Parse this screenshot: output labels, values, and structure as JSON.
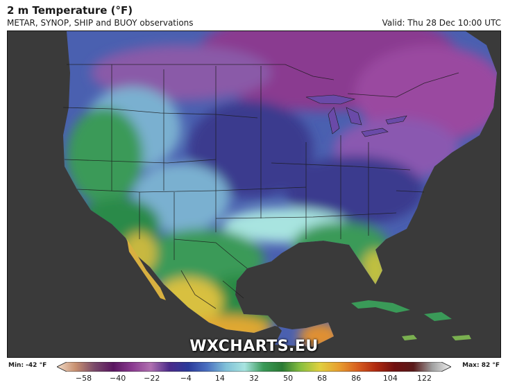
{
  "header": {
    "title": "2 m Temperature (°F)",
    "subtitle": "METAR, SYNOP, SHIP and BUOY observations",
    "valid": "Valid: Thu 28 Dec 10:00 UTC"
  },
  "watermark": "WXCHARTS.EU",
  "legend": {
    "min_label": "Min: -42 °F",
    "max_label": "Max: 82 °F",
    "ticks": [
      "−58",
      "−40",
      "−22",
      "−4",
      "14",
      "32",
      "50",
      "68",
      "86",
      "104",
      "122"
    ],
    "range": [
      -67,
      131
    ],
    "colors": [
      "#f2dcc8",
      "#c89070",
      "#7a4a6a",
      "#5a1660",
      "#8a3a90",
      "#b070b0",
      "#4a2a8a",
      "#2a3a9a",
      "#4a70c0",
      "#80c0d8",
      "#a8e4e0",
      "#3a9a58",
      "#2a7a34",
      "#8ac040",
      "#e0d040",
      "#e8a030",
      "#d86020",
      "#b02a10",
      "#701010",
      "#5a1a1a",
      "#a0a0a0",
      "#f0f0f0"
    ]
  },
  "map": {
    "land_colors": {
      "arctic": "#8a3a90",
      "very_cold": "#3a3a8e",
      "cold": "#4a60b0",
      "cool": "#7ab0d0",
      "mild": "#a8e4e0",
      "warm": "#3a9a58",
      "hot": "#d8c040",
      "ocean": "#3a3a3a"
    }
  }
}
